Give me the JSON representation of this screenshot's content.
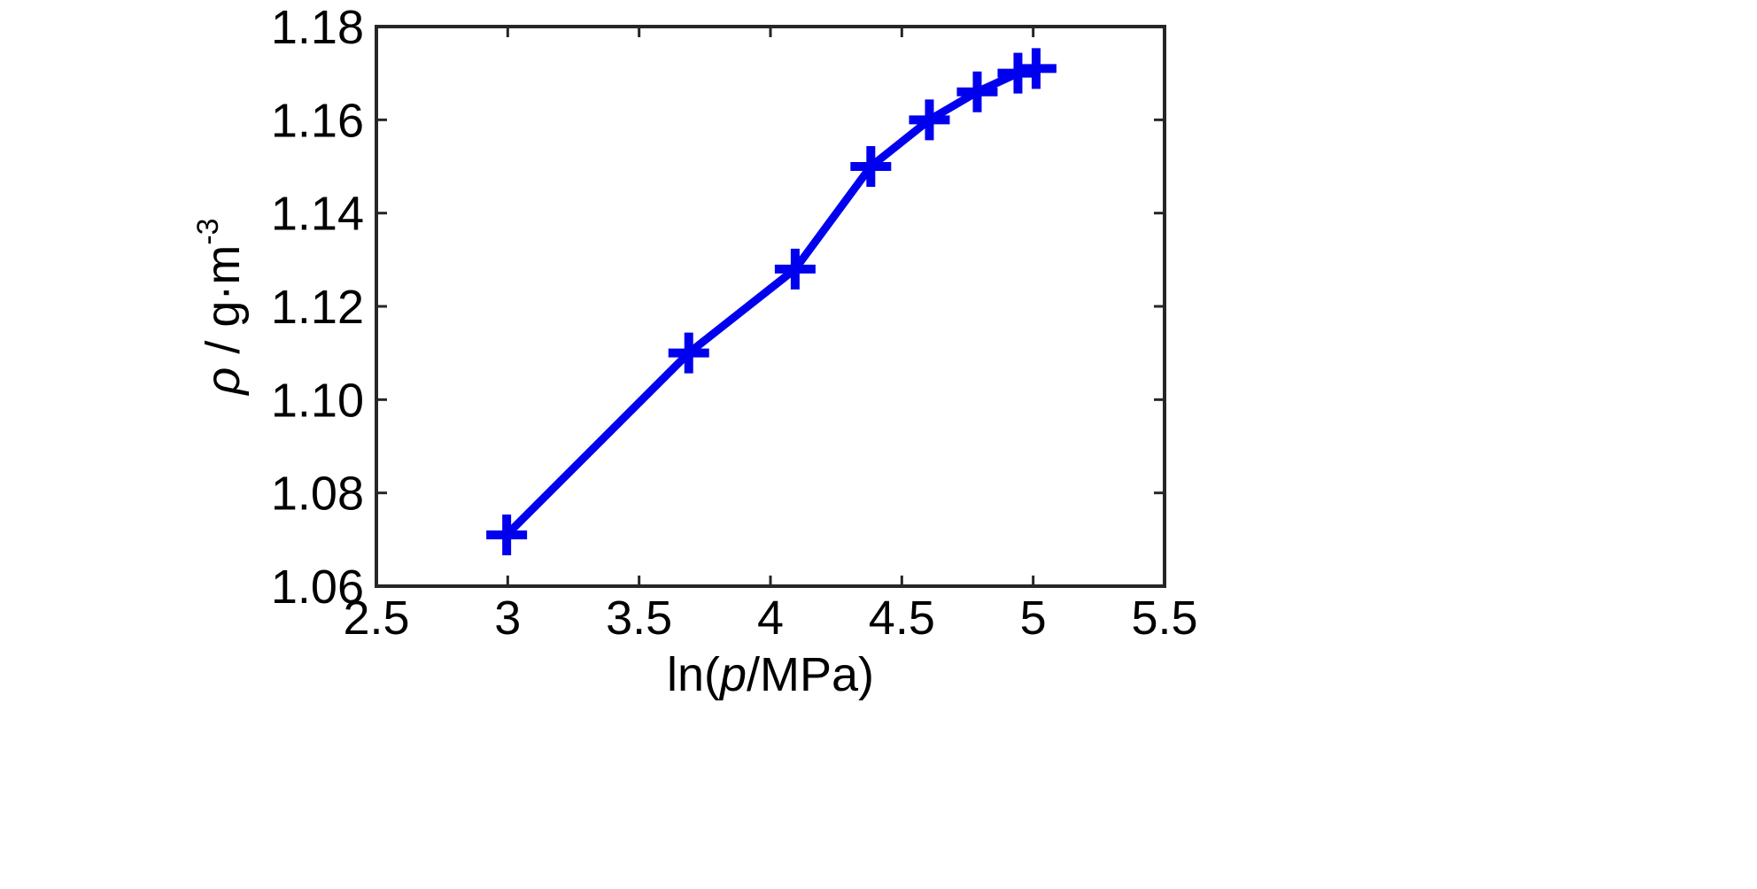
{
  "chart_data": {
    "type": "line",
    "title": "",
    "xlabel": {
      "prefix": "ln(",
      "italic": "p",
      "suffix": "/MPa)"
    },
    "ylabel": {
      "italic": "ρ",
      "rest": " / g·m",
      "sup": "-3"
    },
    "xlim": [
      2.5,
      5.5
    ],
    "ylim": [
      1.06,
      1.18
    ],
    "xticks": [
      2.5,
      3,
      3.5,
      4,
      4.5,
      5,
      5.5
    ],
    "xtick_labels": [
      "2.5",
      "3",
      "3.5",
      "4",
      "4.5",
      "5",
      "5.5"
    ],
    "yticks": [
      1.06,
      1.08,
      1.1,
      1.12,
      1.14,
      1.16,
      1.18
    ],
    "ytick_labels": [
      "1.06",
      "1.08",
      "1.10",
      "1.12",
      "1.14",
      "1.16",
      "1.18"
    ],
    "grid": false,
    "legend": "none",
    "series": [
      {
        "marker": "plus",
        "color": "#0000ee",
        "points": [
          {
            "x": 2.996,
            "y": 1.071
          },
          {
            "x": 3.689,
            "y": 1.11
          },
          {
            "x": 4.094,
            "y": 1.128
          },
          {
            "x": 4.382,
            "y": 1.15
          },
          {
            "x": 4.605,
            "y": 1.16
          },
          {
            "x": 4.787,
            "y": 1.166
          },
          {
            "x": 4.942,
            "y": 1.17
          },
          {
            "x": 5.011,
            "y": 1.171
          }
        ]
      }
    ]
  }
}
